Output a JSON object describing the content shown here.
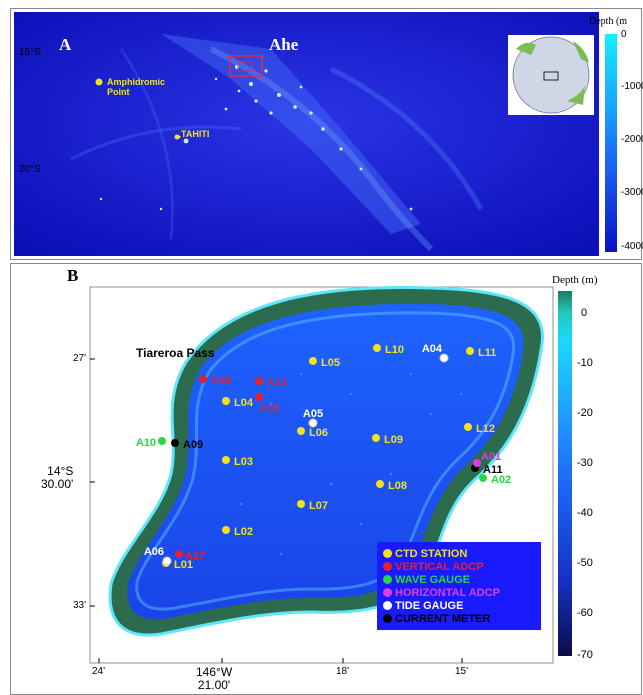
{
  "panel_a": {
    "label": "A",
    "site_name": "Ahe",
    "places": [
      {
        "name": "Amphidromic\nPoint",
        "color": "#f2e21a"
      },
      {
        "name": "TAHITI",
        "color": "#f2e21a"
      }
    ],
    "lat_ticks": [
      "15°S",
      "20°S"
    ],
    "colorbar": {
      "title": "Depth (m",
      "ticks": [
        "0",
        "-1000",
        "-2000",
        "-3000",
        "-4000"
      ]
    }
  },
  "panel_b": {
    "label": "B",
    "pass_label": "Tiareroa Pass",
    "colorbar": {
      "title": "Depth (m)",
      "ticks": [
        "0",
        "-10",
        "-20",
        "-30",
        "-40",
        "-50",
        "-60",
        "-70"
      ]
    },
    "lat_ticks": [
      "27'",
      "14°S\n30.00'",
      "33'"
    ],
    "lon_ticks": [
      "24'",
      "146°W\n21.00'",
      "18'",
      "15'"
    ],
    "stations": [
      {
        "id": "L01",
        "type": "ctd"
      },
      {
        "id": "L02",
        "type": "ctd"
      },
      {
        "id": "L03",
        "type": "ctd"
      },
      {
        "id": "L04",
        "type": "ctd"
      },
      {
        "id": "L05",
        "type": "ctd"
      },
      {
        "id": "L06",
        "type": "ctd"
      },
      {
        "id": "L07",
        "type": "ctd"
      },
      {
        "id": "L08",
        "type": "ctd"
      },
      {
        "id": "L09",
        "type": "ctd"
      },
      {
        "id": "L10",
        "type": "ctd"
      },
      {
        "id": "L11",
        "type": "ctd"
      },
      {
        "id": "L12",
        "type": "ctd"
      },
      {
        "id": "A04",
        "type": "tide"
      },
      {
        "id": "A05",
        "type": "tide"
      },
      {
        "id": "A06",
        "type": "tide"
      },
      {
        "id": "A08",
        "type": "vadcp"
      },
      {
        "id": "A13",
        "type": "vadcp"
      },
      {
        "id": "A15",
        "type": "vadcp"
      },
      {
        "id": "A17",
        "type": "vadcp"
      },
      {
        "id": "A10",
        "type": "wave"
      },
      {
        "id": "A02",
        "type": "wave"
      },
      {
        "id": "A09",
        "type": "current"
      },
      {
        "id": "A11",
        "type": "current"
      },
      {
        "id": "A01",
        "type": "hadcp"
      }
    ],
    "legend": [
      {
        "label": "CTD STATION",
        "color": "#f2e21a"
      },
      {
        "label": "VERTICAL ADCP",
        "color": "#e8202a"
      },
      {
        "label": "WAVE GAUGE",
        "color": "#27d843"
      },
      {
        "label": "HORIZONTAL ADCP",
        "color": "#e03ce0"
      },
      {
        "label": "TIDE GAUGE",
        "color": "#ffffff"
      },
      {
        "label": "CURRENT METER",
        "color": "#000000"
      }
    ]
  }
}
